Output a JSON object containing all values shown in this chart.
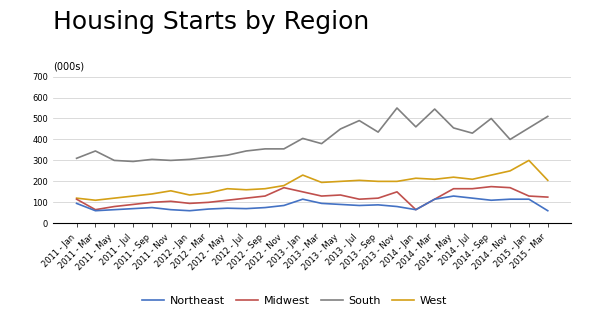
{
  "title": "Housing Starts by Region",
  "ylabel": "(000s)",
  "ylim": [
    0,
    700
  ],
  "yticks": [
    0,
    100,
    200,
    300,
    400,
    500,
    600,
    700
  ],
  "background_color": "#ffffff",
  "tick_labels": [
    "2011 - Jan",
    "2011 - Mar",
    "2011 - May",
    "2011 - Jul",
    "2011 - Sep",
    "2011 - Nov",
    "2012 - Jan",
    "2012 - Mar",
    "2012 - May",
    "2012 - Jul",
    "2012 - Sep",
    "2012 - Nov",
    "2013 - Jan",
    "2013 - Mar",
    "2013 - May",
    "2013 - Jul",
    "2013 - Sep",
    "2013 - Nov",
    "2014 - Jan",
    "2014 - Mar",
    "2014 - May",
    "2014 - Jul",
    "2014 - Sep",
    "2014 - Nov",
    "2015 - Jan",
    "2015 - Mar"
  ],
  "northeast": [
    95,
    60,
    65,
    70,
    75,
    65,
    60,
    68,
    72,
    70,
    75,
    85,
    115,
    95,
    90,
    85,
    88,
    80,
    65,
    115,
    130,
    120,
    110,
    115,
    115,
    60
  ],
  "midwest": [
    115,
    65,
    80,
    90,
    100,
    105,
    95,
    100,
    110,
    120,
    130,
    170,
    150,
    130,
    135,
    115,
    120,
    150,
    65,
    115,
    165,
    165,
    175,
    170,
    130,
    125
  ],
  "south": [
    310,
    345,
    300,
    295,
    305,
    300,
    305,
    315,
    325,
    345,
    355,
    355,
    405,
    380,
    450,
    490,
    435,
    550,
    460,
    545,
    455,
    430,
    500,
    400,
    455,
    510
  ],
  "west": [
    120,
    110,
    120,
    130,
    140,
    155,
    135,
    145,
    165,
    160,
    165,
    180,
    230,
    195,
    200,
    205,
    200,
    200,
    215,
    210,
    220,
    210,
    230,
    250,
    300,
    205
  ],
  "northeast_color": "#4472c4",
  "midwest_color": "#c0504d",
  "south_color": "#808080",
  "west_color": "#d4a017",
  "line_width": 1.2,
  "title_fontsize": 18,
  "tick_fontsize": 6,
  "legend_fontsize": 8
}
